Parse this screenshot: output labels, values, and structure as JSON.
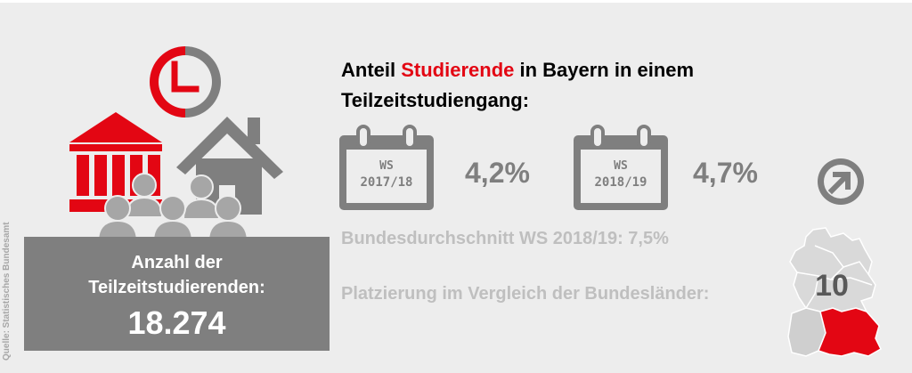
{
  "source": "Quelle: Statistisches Bundesamt",
  "headline": {
    "part1": "Anteil ",
    "highlight": "Studierende",
    "part2": " in Bayern in einem Teilzeitstudiengang:"
  },
  "semesters": [
    {
      "label": "WS",
      "year": "2017/18",
      "value": "4,2%"
    },
    {
      "label": "WS",
      "year": "2018/19",
      "value": "4,7%"
    }
  ],
  "federal_average": "Bundesdurchschnitt WS 2018/19: 7,5%",
  "ranking": {
    "label": "Platzierung im Vergleich der Bundesländer:",
    "value": "10"
  },
  "count_box": {
    "line1": "Anzahl der",
    "line2": "Teilzeitstudierenden:",
    "value": "18.274"
  },
  "icons": {
    "clock": "clock-icon",
    "building": "university-building-icon",
    "house": "house-icon",
    "people": "people-group-icon",
    "calendar": "calendar-icon",
    "next": "arrow-right-circle-icon",
    "map": "germany-map-icon"
  },
  "colors": {
    "accent": "#e30613",
    "gray": "#7f7f7f",
    "light_gray": "#bfbfbf",
    "background": "#ededed"
  }
}
